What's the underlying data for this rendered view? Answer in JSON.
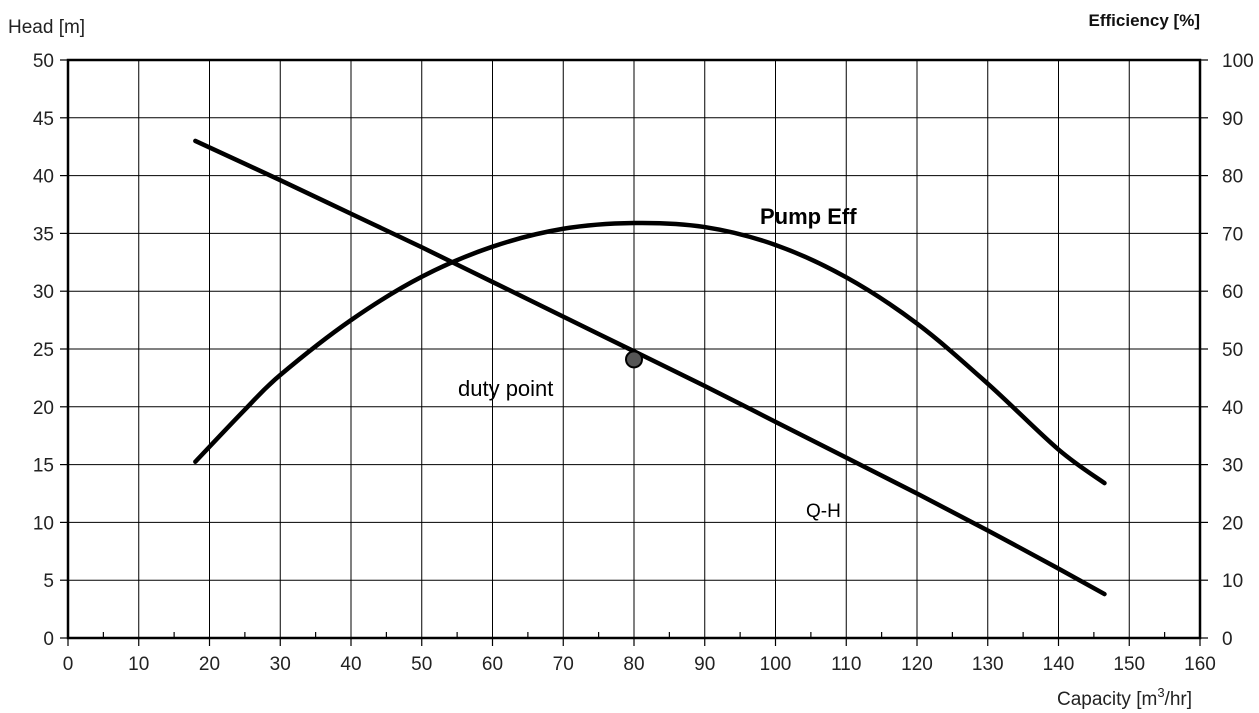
{
  "chart_data": {
    "type": "line",
    "x_axis": {
      "label": "Capacity [m",
      "label_sup": "3",
      "label_suffix": "/hr]",
      "range": [
        0,
        160
      ],
      "ticks": [
        0,
        10,
        20,
        30,
        40,
        50,
        60,
        70,
        80,
        90,
        100,
        110,
        120,
        130,
        140,
        150,
        160
      ]
    },
    "y_axis_left": {
      "label": "Head [m]",
      "range": [
        0,
        50
      ],
      "ticks": [
        0,
        5,
        10,
        15,
        20,
        25,
        30,
        35,
        40,
        45,
        50
      ]
    },
    "y_axis_right": {
      "label": "Efficiency [%]",
      "range": [
        0,
        100
      ],
      "ticks": [
        0,
        10,
        20,
        30,
        40,
        50,
        60,
        70,
        80,
        90,
        100
      ]
    },
    "grid": true,
    "series": [
      {
        "name": "Q-H",
        "axis": "left",
        "color": "#000000",
        "x": [
          18,
          30,
          40,
          50,
          60,
          70,
          80,
          90,
          100,
          110,
          120,
          130,
          140,
          146.5
        ],
        "y": [
          43.0,
          39.6,
          36.7,
          33.8,
          30.8,
          27.8,
          24.8,
          21.8,
          18.7,
          15.6,
          12.5,
          9.3,
          6.0,
          3.8
        ]
      },
      {
        "name": "Pump Eff",
        "axis": "right",
        "color": "#000000",
        "x": [
          18,
          25,
          30,
          40,
          50,
          60,
          70,
          80,
          90,
          100,
          110,
          120,
          130,
          140,
          146.5
        ],
        "y": [
          30.5,
          39.5,
          45.5,
          55.0,
          62.5,
          67.7,
          70.8,
          71.8,
          71.1,
          68.0,
          62.4,
          54.4,
          44.0,
          32.6,
          26.8
        ]
      }
    ],
    "points": [
      {
        "name": "duty point",
        "axis": "left",
        "x": 80,
        "y": 24.1,
        "color": "#555555"
      }
    ],
    "annotations": {
      "pump_eff": "Pump Eff",
      "qh": "Q-H",
      "duty": "duty point"
    }
  }
}
